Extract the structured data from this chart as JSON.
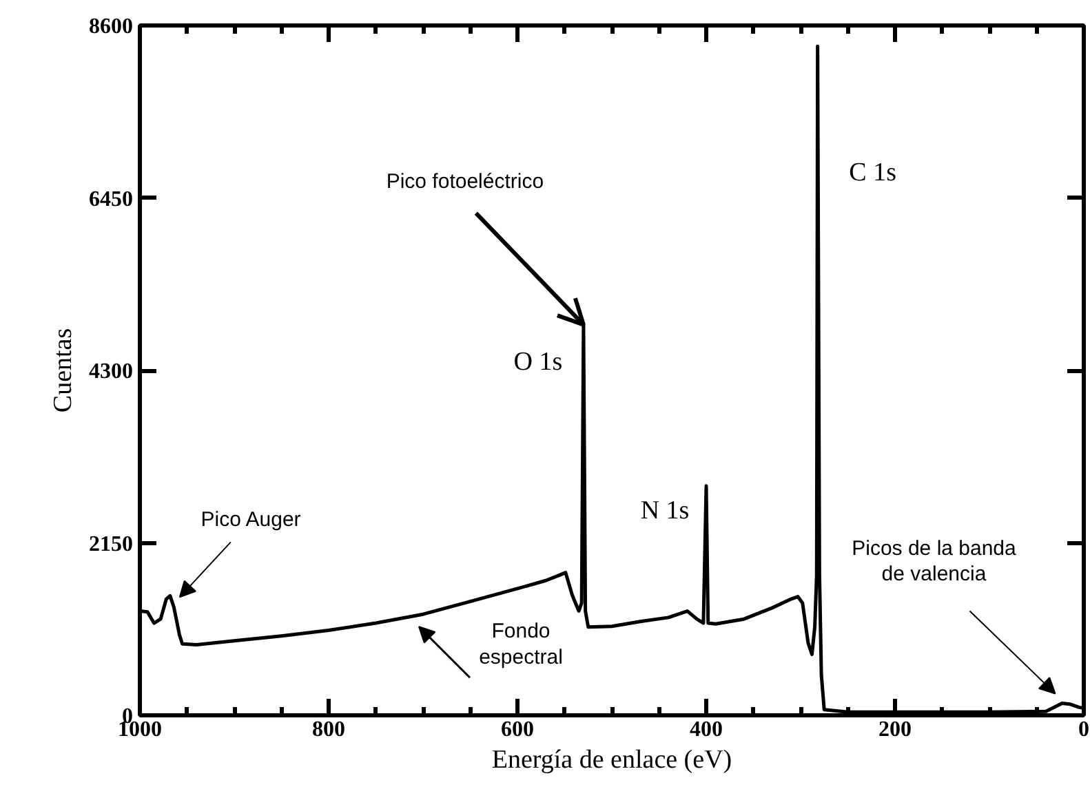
{
  "chart_data": {
    "type": "line",
    "xlabel": "Energía de enlace (eV)",
    "ylabel": "Cuentas",
    "xlim": [
      1000,
      0
    ],
    "xticks": [
      1000,
      800,
      600,
      400,
      200,
      0
    ],
    "ylim": [
      0,
      8600
    ],
    "yticks": [
      0,
      2150,
      4300,
      6450,
      8600
    ],
    "grid": false,
    "marker": "none",
    "line_style": "solid",
    "series": [
      {
        "color": "#000000",
        "x": [
          1000,
          992,
          985,
          978,
          972,
          968,
          964,
          958,
          955,
          940,
          900,
          850,
          800,
          750,
          700,
          650,
          600,
          570,
          555,
          549,
          542,
          535,
          532,
          530,
          528,
          525,
          500,
          470,
          440,
          420,
          410,
          403,
          400,
          398,
          390,
          360,
          330,
          310,
          303,
          298,
          292,
          288,
          285,
          283,
          282,
          280,
          278,
          275,
          250,
          200,
          100,
          40,
          28,
          23,
          15,
          5,
          0
        ],
        "values": [
          1300,
          1290,
          1150,
          1200,
          1450,
          1490,
          1350,
          1000,
          890,
          880,
          930,
          990,
          1060,
          1150,
          1260,
          1420,
          1580,
          1680,
          1750,
          1780,
          1500,
          1300,
          1400,
          4870,
          1300,
          1100,
          1110,
          1170,
          1220,
          1300,
          1200,
          1150,
          2860,
          1150,
          1140,
          1200,
          1340,
          1450,
          1480,
          1400,
          900,
          760,
          1100,
          1750,
          8340,
          1750,
          500,
          70,
          40,
          40,
          40,
          50,
          120,
          150,
          140,
          100,
          90
        ]
      }
    ],
    "annotations": [
      {
        "text": "Pico fotoeléctrico",
        "x": 530,
        "y": 4870
      },
      {
        "text": "O 1s",
        "x": 530,
        "y": 4870
      },
      {
        "text": "N 1s",
        "x": 400,
        "y": 2860
      },
      {
        "text": "C 1s",
        "x": 282,
        "y": 6760
      },
      {
        "text": "Pico Auger",
        "x": 968,
        "y": 1490
      },
      {
        "text": "Fondo\nespectral",
        "x": 700,
        "y": 1260
      },
      {
        "text": "Picos de la banda\nde valencia",
        "x": 23,
        "y": 150
      }
    ]
  }
}
